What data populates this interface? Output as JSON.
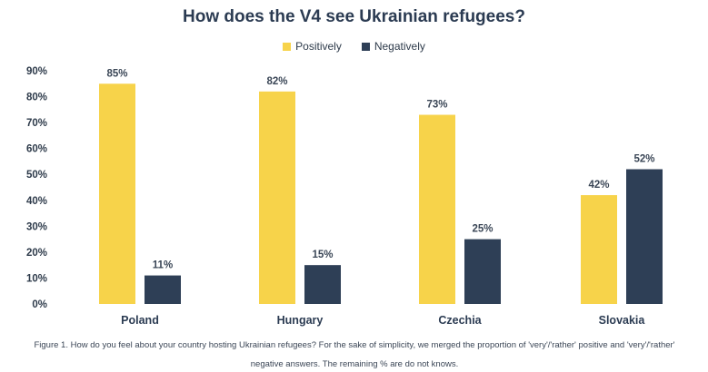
{
  "chart_data": {
    "type": "bar",
    "title": "How does the V4 see Ukrainian refugees?",
    "categories": [
      "Poland",
      "Hungary",
      "Czechia",
      "Slovakia"
    ],
    "series": [
      {
        "name": "Positively",
        "color": "#f7d34a",
        "values": [
          85,
          82,
          73,
          42
        ],
        "labels": [
          "85%",
          "82%",
          "73%",
          "42%"
        ]
      },
      {
        "name": "Negatively",
        "color": "#2e3f56",
        "values": [
          11,
          15,
          25,
          52
        ],
        "labels": [
          "11%",
          "15%",
          "25%",
          "52%"
        ]
      }
    ],
    "ylim": [
      0,
      90
    ],
    "yticks": [
      "0%",
      "10%",
      "20%",
      "30%",
      "40%",
      "50%",
      "60%",
      "70%",
      "80%",
      "90%"
    ],
    "legend": "top-center",
    "grid": false
  },
  "caption": {
    "line1": "Figure 1. How do you feel about your country hosting Ukrainian refugees? For the sake of simplicity, we merged the proportion of 'very'/'rather' positive and 'very'/'rather'",
    "line2": "negative answers. The remaining % are do not knows."
  }
}
